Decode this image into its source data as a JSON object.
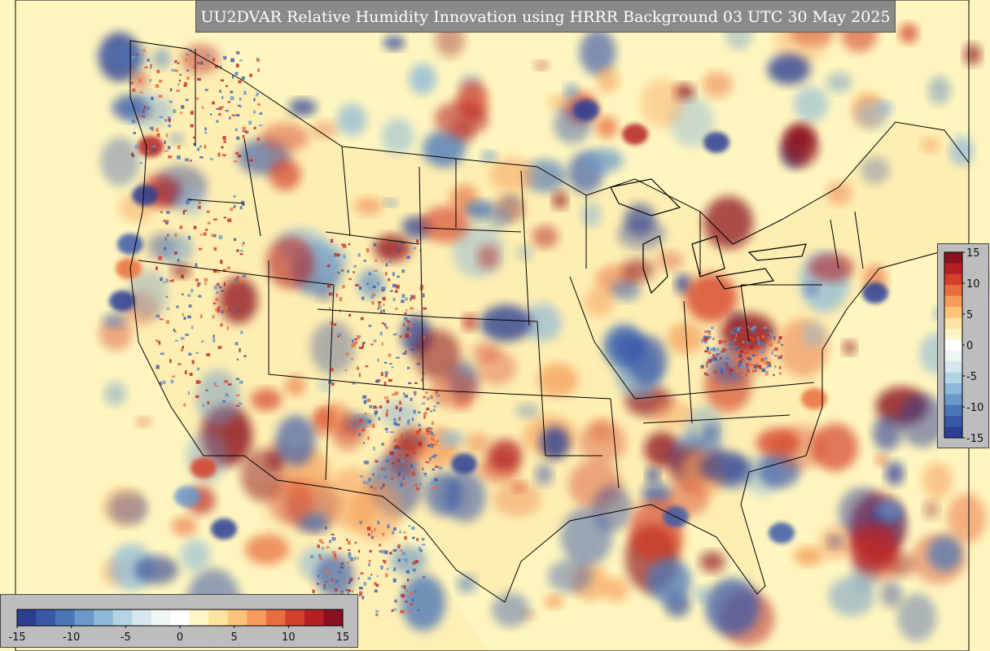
{
  "title": "UU2DVAR Relative Humidity Innovation using HRRR Background 03 UTC 30 May 2025",
  "colorbar": {
    "min": -15,
    "max": 15,
    "horizontal_ticks": [
      "-15",
      "-10",
      "-5",
      "0",
      "5",
      "10",
      "15"
    ],
    "vertical_ticks": [
      "15",
      "10",
      "5",
      "0",
      "-5",
      "-10",
      "-15"
    ],
    "colors": [
      "#2c3e94",
      "#3a58a8",
      "#4a76b8",
      "#6a98c8",
      "#8db8d8",
      "#b4d4e6",
      "#d6e8ef",
      "#eef6f4",
      "#ffffff",
      "#fdf5c6",
      "#fde4a0",
      "#fdc37a",
      "#f59c5a",
      "#e86e40",
      "#d4402c",
      "#b52025",
      "#8a0f1f"
    ]
  },
  "map": {
    "background_color": "#fff6bf",
    "positive_color": "#c8302c",
    "negative_color": "#2f50a0"
  }
}
